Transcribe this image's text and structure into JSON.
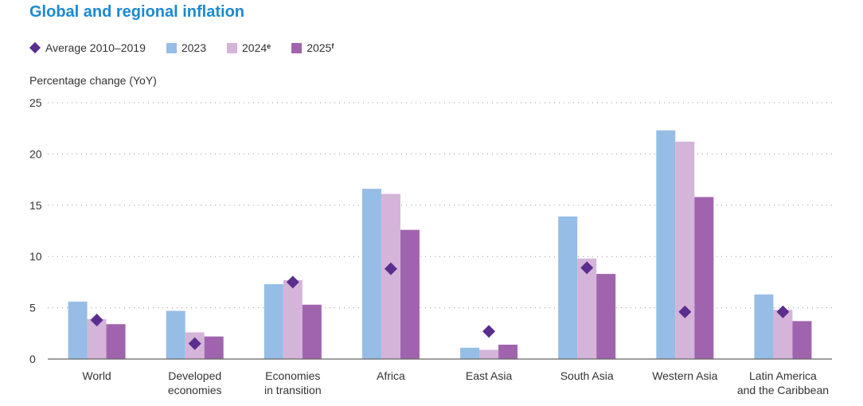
{
  "title": "Global and regional inflation",
  "legend": {
    "avg": "Average 2010–2019",
    "y2023": "2023",
    "y2024": "2024",
    "y2024_sup": "e",
    "y2025": "2025",
    "y2025_sup": "f"
  },
  "colors": {
    "title": "#1a8ad1",
    "avg": "#5b2d8e",
    "y2023": "#95bde6",
    "y2024": "#d5b4d9",
    "y2025": "#a064ae"
  },
  "chart_data": {
    "type": "bar",
    "title": "Global and regional inflation",
    "ylabel": "Percentage change (YoY)",
    "xlabel": "",
    "ylim": [
      0,
      25
    ],
    "yticks": [
      0,
      5,
      10,
      15,
      20,
      25
    ],
    "grid": true,
    "legend_position": "top-left",
    "categories": [
      [
        "World"
      ],
      [
        "Developed",
        "economies"
      ],
      [
        "Economies",
        "in transition"
      ],
      [
        "Africa"
      ],
      [
        "East Asia"
      ],
      [
        "South Asia"
      ],
      [
        "Western Asia"
      ],
      [
        "Latin America",
        "and the Caribbean"
      ]
    ],
    "series": [
      {
        "name": "2023",
        "values": [
          5.6,
          4.7,
          7.3,
          16.6,
          1.1,
          13.9,
          22.3,
          6.3
        ]
      },
      {
        "name": "2024e",
        "values": [
          3.9,
          2.6,
          7.7,
          16.1,
          0.9,
          9.8,
          21.2,
          4.8
        ]
      },
      {
        "name": "2025f",
        "values": [
          3.4,
          2.2,
          5.3,
          12.6,
          1.4,
          8.3,
          15.8,
          3.7
        ]
      },
      {
        "name": "Average 2010–2019",
        "values": [
          3.8,
          1.5,
          7.5,
          8.8,
          2.7,
          8.9,
          4.6,
          4.6
        ],
        "marker": "diamond"
      }
    ]
  }
}
